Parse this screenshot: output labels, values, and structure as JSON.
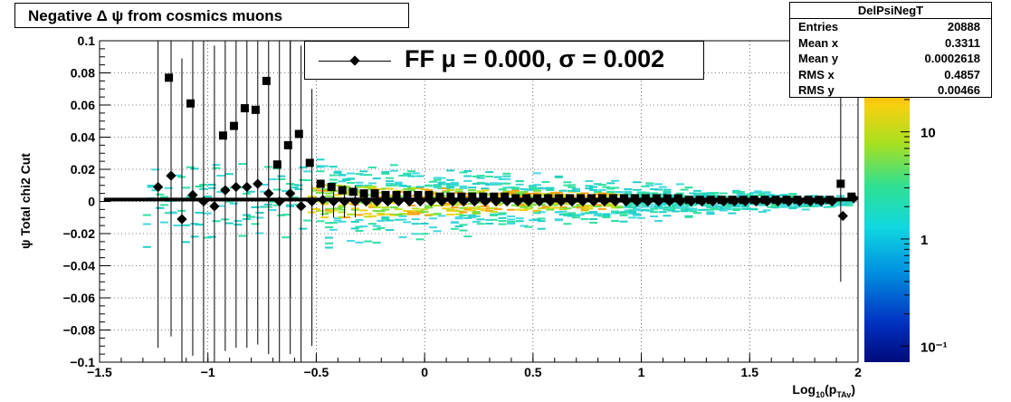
{
  "title": "Negative Δ ψ from cosmics muons",
  "stats": {
    "name": "DelPsiNegT",
    "rows": [
      {
        "label": "Entries",
        "value": "20888"
      },
      {
        "label": "Mean x",
        "value": "0.3311"
      },
      {
        "label": "Mean y",
        "value": "0.0002618"
      },
      {
        "label": "RMS x",
        "value": "0.4857"
      },
      {
        "label": "RMS y",
        "value": "0.00466"
      }
    ]
  },
  "legend": {
    "text": "FF μ =  0.000, σ =   0.002"
  },
  "colors": {
    "markers": "#000000",
    "frame": "#000000"
  },
  "chart_data": {
    "type": "scatter",
    "title": "Negative Δ ψ from cosmics muons",
    "xlabel": "Log10(pTAv)",
    "ylabel": "ψ  Total chi2 Cut",
    "xlim": [
      -1.5,
      2
    ],
    "ylim": [
      -0.1,
      0.1
    ],
    "x_ticks": [
      "−1.5",
      "−1",
      "−0.5",
      "0",
      "0.5",
      "1",
      "1.5",
      "2"
    ],
    "y_ticks": [
      "−0.1",
      "−0.08",
      "−0.06",
      "−0.04",
      "−0.02",
      "0",
      "0.02",
      "0.04",
      "0.06",
      "0.08",
      "0.1"
    ],
    "grid": true,
    "colorbar": {
      "scale": "log",
      "ticks": [
        "10⁻¹",
        "1",
        "10"
      ]
    },
    "series": [
      {
        "marker": "diamond",
        "x": [
          -1.23,
          -1.17,
          -1.12,
          -1.07,
          -1.02,
          -0.97,
          -0.92,
          -0.87,
          -0.82,
          -0.77,
          -0.72,
          -0.67,
          -0.62,
          -0.57,
          -0.52,
          -0.47,
          -0.42,
          -0.37,
          -0.32,
          -0.27,
          -0.22,
          -0.17,
          -0.12,
          -0.07,
          -0.02,
          0.03,
          0.08,
          0.13,
          0.18,
          0.23,
          0.28,
          0.33,
          0.38,
          0.43,
          0.48,
          0.53,
          0.58,
          0.63,
          0.68,
          0.73,
          0.78,
          0.83,
          0.88,
          0.93,
          0.98,
          1.03,
          1.08,
          1.13,
          1.18,
          1.23,
          1.28,
          1.33,
          1.38,
          1.43,
          1.48,
          1.53,
          1.58,
          1.63,
          1.68,
          1.73,
          1.78,
          1.83,
          1.88,
          1.93,
          1.98
        ],
        "y": [
          0.009,
          0.016,
          -0.011,
          0.004,
          0.0,
          -0.003,
          0.007,
          0.009,
          0.009,
          0.011,
          0.005,
          0.0,
          0.005,
          -0.003,
          0.0,
          0.001,
          0.0,
          0.0,
          0.0,
          0.0,
          0.0,
          0.0,
          0.0,
          0.0,
          0.0,
          0.0,
          0.0,
          0.0,
          0.0,
          0.0,
          0.0,
          0.0,
          0.0,
          0.0,
          0.0,
          0.0,
          0.0,
          0.0,
          0.0,
          0.0,
          0.0,
          0.0,
          0.0,
          0.0,
          0.0,
          0.0,
          0.0,
          0.0,
          0.0,
          0.0,
          0.0,
          0.0,
          0.0,
          0.0,
          0.0,
          0.0,
          0.0,
          0.0,
          0.0,
          0.0,
          0.0,
          0.0,
          0.0,
          -0.009,
          0.002
        ]
      },
      {
        "marker": "square",
        "x": [
          -1.18,
          -1.08,
          -0.93,
          -0.88,
          -0.83,
          -0.78,
          -0.73,
          -0.68,
          -0.63,
          -0.58,
          -0.53,
          -0.48,
          -0.43,
          -0.38,
          -0.33,
          -0.28,
          -0.23,
          -0.18,
          -0.13,
          -0.08,
          -0.03,
          0.02,
          0.07,
          0.12,
          0.17,
          0.22,
          0.27,
          0.32,
          0.37,
          0.42,
          0.47,
          0.52,
          0.57,
          0.62,
          0.67,
          0.72,
          0.77,
          0.82,
          0.87,
          0.92,
          0.97,
          1.02,
          1.07,
          1.12,
          1.17,
          1.22,
          1.27,
          1.32,
          1.37,
          1.42,
          1.47,
          1.52,
          1.57,
          1.62,
          1.67,
          1.72,
          1.77,
          1.82,
          1.87,
          1.92,
          1.97
        ],
        "y": [
          0.077,
          0.061,
          0.041,
          0.047,
          0.058,
          0.057,
          0.075,
          0.023,
          0.035,
          0.042,
          0.024,
          0.011,
          0.009,
          0.007,
          0.006,
          0.005,
          0.005,
          0.004,
          0.004,
          0.004,
          0.004,
          0.004,
          0.003,
          0.003,
          0.003,
          0.003,
          0.003,
          0.003,
          0.003,
          0.002,
          0.002,
          0.002,
          0.002,
          0.002,
          0.002,
          0.002,
          0.002,
          0.002,
          0.002,
          0.002,
          0.002,
          0.002,
          0.002,
          0.002,
          0.002,
          0.001,
          0.001,
          0.001,
          0.001,
          0.001,
          0.001,
          0.001,
          0.001,
          0.001,
          0.001,
          0.001,
          0.001,
          0.001,
          0.001,
          0.011,
          0.003
        ]
      }
    ]
  }
}
